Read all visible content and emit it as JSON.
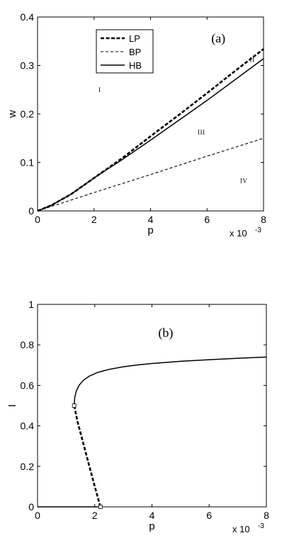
{
  "chart_data": [
    {
      "type": "line",
      "panel_label": "(a)",
      "xlabel": "p",
      "ylabel": "w",
      "x_multiplier": "x 10",
      "x_multiplier_exp": "-3",
      "xlim": [
        0,
        8
      ],
      "ylim": [
        0,
        0.4
      ],
      "xticks": [
        "0",
        "2",
        "4",
        "6",
        "8"
      ],
      "yticks": [
        "0",
        "0.1",
        "0.2",
        "0.3",
        "0.4"
      ],
      "legend": {
        "position": "top-center",
        "entries": [
          "LP",
          "BP",
          "HB"
        ]
      },
      "series": [
        {
          "name": "LP",
          "style": "thick-dashed",
          "x": [
            0,
            0.5,
            1.2,
            2,
            3,
            4,
            5,
            6,
            7,
            8
          ],
          "y": [
            0,
            0.012,
            0.035,
            0.068,
            0.109,
            0.154,
            0.198,
            0.243,
            0.289,
            0.334
          ]
        },
        {
          "name": "BP",
          "style": "thin-dashed",
          "x": [
            0,
            1,
            2,
            4,
            6,
            8
          ],
          "y": [
            0,
            0.019,
            0.038,
            0.075,
            0.113,
            0.15
          ]
        },
        {
          "name": "HB",
          "style": "solid",
          "x": [
            0,
            0.5,
            1.2,
            2,
            3,
            4,
            5,
            6,
            7,
            8
          ],
          "y": [
            0,
            0.012,
            0.035,
            0.068,
            0.106,
            0.146,
            0.187,
            0.228,
            0.271,
            0.314
          ]
        }
      ],
      "annotations": [
        {
          "text": "I",
          "x": 2.2,
          "y": 0.25
        },
        {
          "text": "II",
          "x": 7.6,
          "y": 0.312
        },
        {
          "text": "III",
          "x": 5.8,
          "y": 0.162
        },
        {
          "text": "IV",
          "x": 7.3,
          "y": 0.062
        }
      ]
    },
    {
      "type": "line",
      "panel_label": "(b)",
      "xlabel": "p",
      "ylabel": "I",
      "x_multiplier": "x 10",
      "x_multiplier_exp": "-3",
      "xlim": [
        0,
        8
      ],
      "ylim": [
        0,
        1
      ],
      "xticks": [
        "0",
        "2",
        "4",
        "6",
        "8"
      ],
      "yticks": [
        "0",
        "0.2",
        "0.4",
        "0.6",
        "0.8",
        "1"
      ],
      "series": [
        {
          "style": "solid",
          "x": [
            1.28,
            1.3,
            1.35,
            1.45,
            1.6,
            1.8,
            2.1,
            2.5,
            3,
            3.5,
            4,
            5,
            6,
            7,
            8
          ],
          "y": [
            0.5,
            0.54,
            0.57,
            0.6,
            0.625,
            0.645,
            0.664,
            0.679,
            0.692,
            0.701,
            0.708,
            0.719,
            0.727,
            0.734,
            0.74
          ]
        },
        {
          "style": "thick-dashed",
          "x": [
            1.28,
            1.4,
            1.55,
            1.7,
            1.85,
            2,
            2.1,
            2.2
          ],
          "y": [
            0.5,
            0.42,
            0.34,
            0.26,
            0.18,
            0.1,
            0.05,
            0
          ]
        },
        {
          "style": "solid",
          "x": [
            0,
            2.2
          ],
          "y": [
            0,
            0
          ]
        },
        {
          "style": "thin-dashed",
          "x": [
            2.2,
            8
          ],
          "y": [
            0,
            0
          ]
        }
      ],
      "markers": [
        {
          "x": 1.28,
          "y": 0.5
        },
        {
          "x": 2.2,
          "y": 0
        }
      ]
    }
  ]
}
